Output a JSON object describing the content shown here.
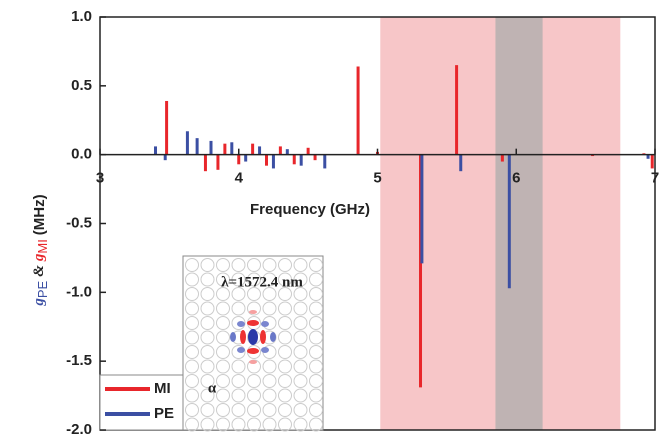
{
  "chart_data": {
    "type": "stem",
    "x_label": "Frequency (GHz)",
    "y_label_parts": {
      "g1": "g",
      "sub1": "PE",
      "amp": "&",
      "g2": "g",
      "sub2": "MI",
      "unit": "(MHz)"
    },
    "xlim": [
      3,
      7
    ],
    "xticks": [
      3,
      4,
      5,
      6,
      7
    ],
    "ylim": [
      -2,
      1
    ],
    "yticks": [
      {
        "value": -2,
        "label": "-2.0"
      },
      {
        "value": -1.5,
        "label": "-1.5"
      },
      {
        "value": -1,
        "label": "-1.0"
      },
      {
        "value": -0.5,
        "label": "-0.5"
      },
      {
        "value": 0,
        "label": "0.0"
      },
      {
        "value": 0.5,
        "label": "0.5"
      },
      {
        "value": 1,
        "label": "1.0"
      }
    ],
    "shaded_regions": [
      {
        "range": [
          5.02,
          6.75
        ],
        "color": "#f7c6c8"
      },
      {
        "range": [
          5.85,
          6.19
        ],
        "color": "#bfb3b3"
      }
    ],
    "series": [
      {
        "name": "MI",
        "color": "#e8262b",
        "x": [
          3.48,
          3.76,
          3.85,
          3.9,
          4.0,
          4.1,
          4.2,
          4.3,
          4.4,
          4.5,
          4.55,
          4.86,
          5.0,
          5.31,
          5.57,
          5.9,
          6.55,
          6.92,
          6.98
        ],
        "values": [
          0.39,
          -0.12,
          -0.11,
          0.08,
          -0.07,
          0.08,
          -0.08,
          0.06,
          -0.07,
          0.05,
          -0.04,
          0.64,
          0.02,
          -1.69,
          0.65,
          -0.05,
          -0.01,
          0.01,
          -0.1
        ]
      },
      {
        "name": "PE",
        "color": "#3b4fa3",
        "x": [
          3.4,
          3.47,
          3.63,
          3.7,
          3.8,
          3.95,
          4.05,
          4.15,
          4.25,
          4.35,
          4.45,
          4.62,
          5.32,
          5.6,
          5.95,
          6.95
        ],
        "values": [
          0.06,
          -0.04,
          0.17,
          0.12,
          0.1,
          0.09,
          -0.05,
          0.06,
          -0.1,
          0.04,
          -0.08,
          -0.1,
          -0.79,
          -0.12,
          -0.97,
          -0.03
        ]
      }
    ],
    "inset_label": "λ=1572.4 nm",
    "inset_symbol": "α"
  }
}
